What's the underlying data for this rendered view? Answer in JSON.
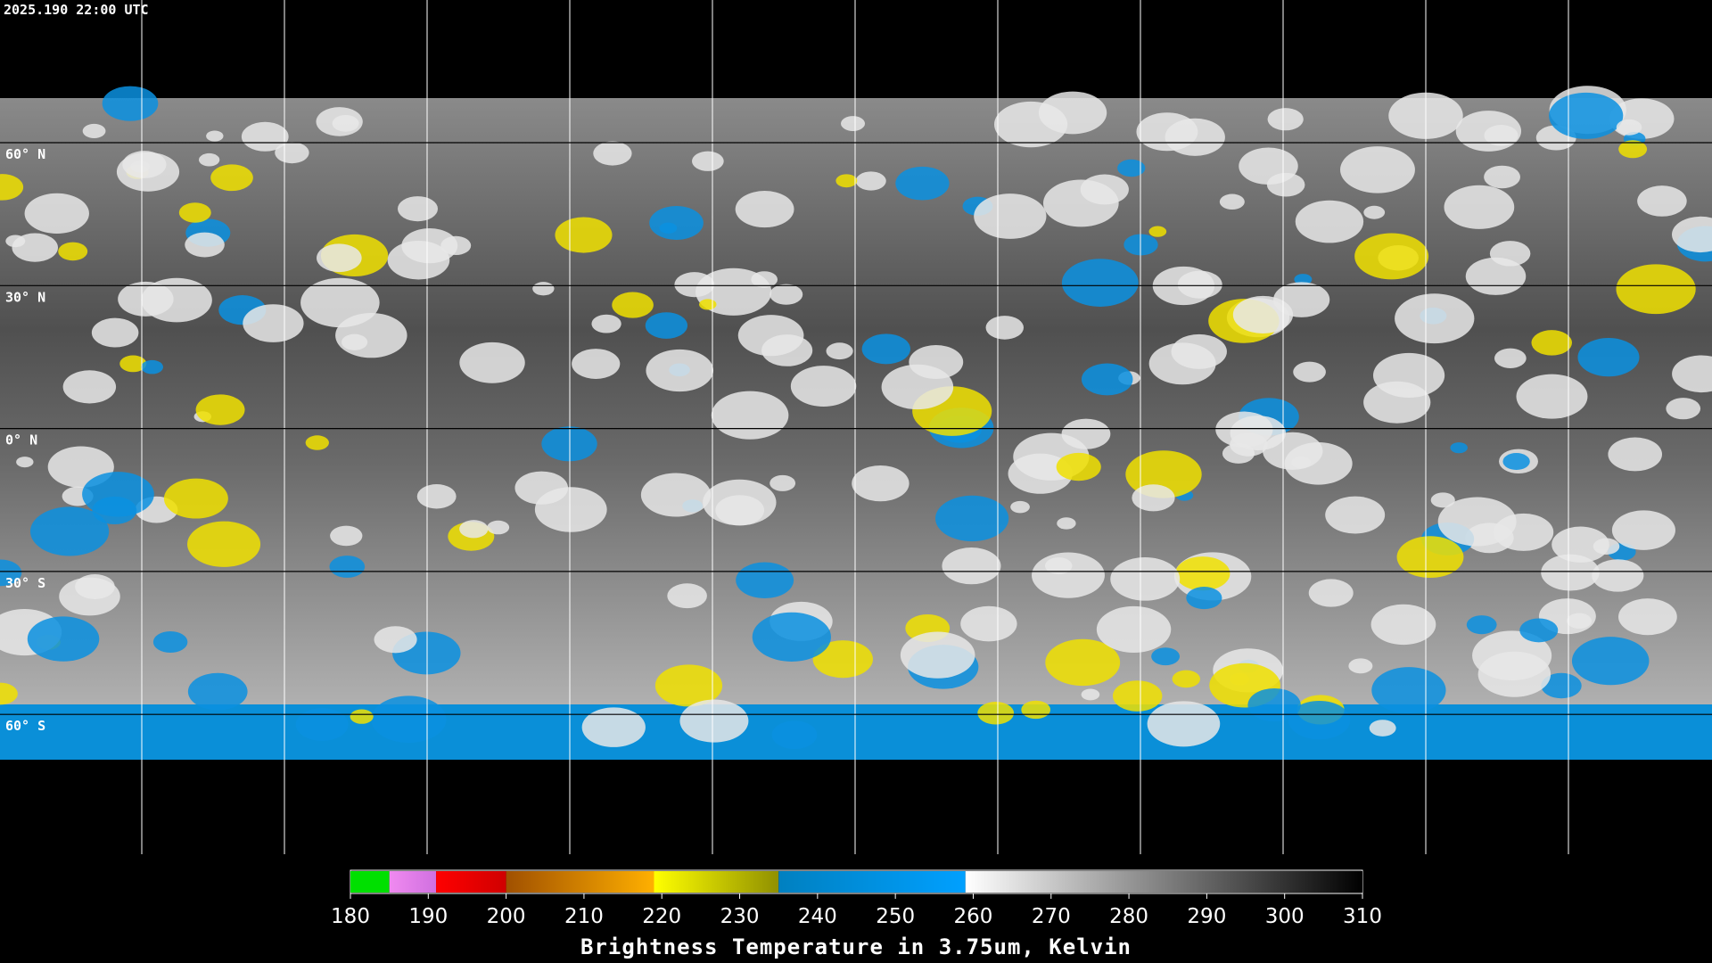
{
  "header": {
    "timestamp": "2025.190 22:00 UTC"
  },
  "map": {
    "lat_labels": [
      "60° N",
      "30° N",
      "0° N",
      "30° S",
      "60° S"
    ]
  },
  "colorbar": {
    "title": "Brightness Temperature in 3.75um, Kelvin",
    "lim": [
      180,
      310
    ],
    "ticks": [
      180,
      190,
      200,
      210,
      220,
      230,
      240,
      250,
      260,
      270,
      280,
      290,
      300,
      310
    ],
    "segments": [
      {
        "from": 180,
        "to": 185,
        "colors": [
          "#00e000",
          "#00e000"
        ]
      },
      {
        "from": 185,
        "to": 191,
        "colors": [
          "#f08af0",
          "#d070e0"
        ]
      },
      {
        "from": 191,
        "to": 200,
        "colors": [
          "#ff0000",
          "#d00000"
        ]
      },
      {
        "from": 200,
        "to": 219,
        "colors": [
          "#a05000",
          "#ffb000"
        ]
      },
      {
        "from": 219,
        "to": 235,
        "colors": [
          "#ffff00",
          "#909000"
        ]
      },
      {
        "from": 235,
        "to": 259,
        "colors": [
          "#0080c0",
          "#00a0ff"
        ]
      },
      {
        "from": 259,
        "to": 310,
        "colors": [
          "#ffffff",
          "#000000"
        ]
      }
    ]
  }
}
